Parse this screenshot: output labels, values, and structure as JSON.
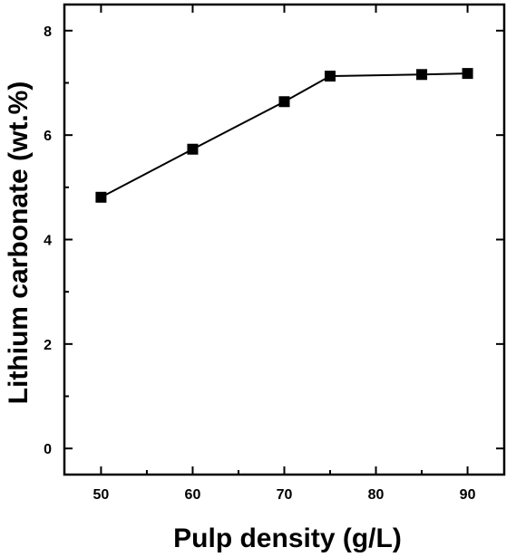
{
  "chart_data": {
    "type": "line",
    "title": "",
    "xlabel": "Pulp density (g/L)",
    "ylabel": "Lithium carbonate (wt.%)",
    "xlim": [
      46,
      94
    ],
    "ylim": [
      -0.5,
      8.5
    ],
    "x_ticks": [
      50,
      60,
      70,
      80,
      90
    ],
    "y_ticks": [
      0,
      2,
      4,
      6,
      8
    ],
    "x_tick_labels": [
      "50",
      "60",
      "70",
      "80",
      "90"
    ],
    "y_tick_labels": [
      "0",
      "2",
      "4",
      "6",
      "8"
    ],
    "grid": false,
    "series": [
      {
        "marker": "square",
        "color": "#000000",
        "x": [
          50,
          60,
          70,
          75,
          85,
          90
        ],
        "y": [
          4.81,
          5.73,
          6.64,
          7.13,
          7.16,
          7.18
        ]
      }
    ]
  }
}
